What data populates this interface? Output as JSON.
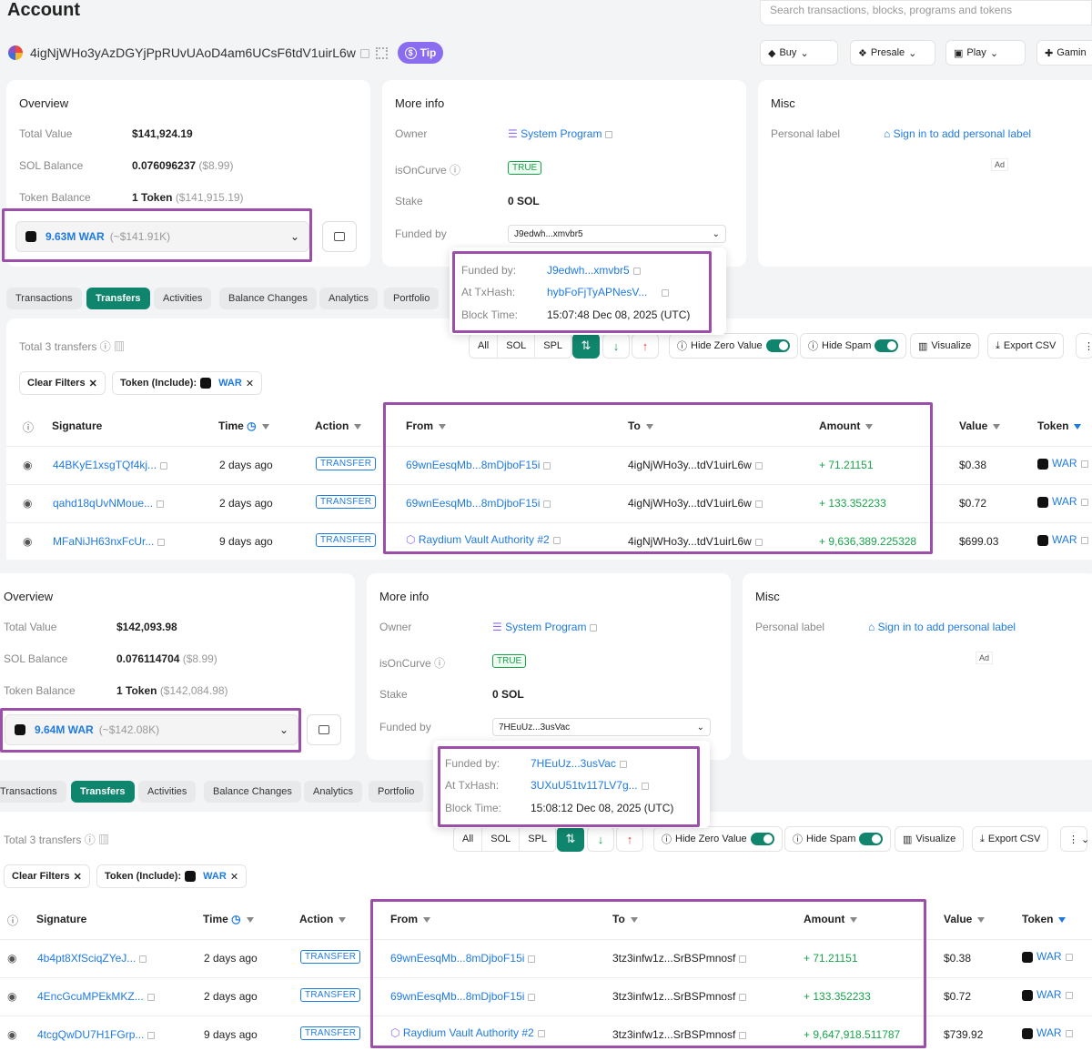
{
  "top": {
    "title": "Account",
    "address": "4igNjWHo3yAzDGYjPpRUvUAoD4am6UCsF6tdV1uirL6w",
    "tip_label": "Tip",
    "search_placeholder": "Search transactions, blocks, programs and tokens",
    "nav": [
      "Buy",
      "Presale",
      "Play",
      "Gamin"
    ]
  },
  "panels": [
    {
      "overview": {
        "heading": "Overview",
        "total_value_label": "Total Value",
        "total_value": "$141,924.19",
        "sol_label": "SOL Balance",
        "sol": "0.076096237",
        "sol_usd": "($8.99)",
        "token_label": "Token Balance",
        "token": "1 Token",
        "token_usd": "($141,915.19)",
        "select_amount": "9.63M WAR",
        "select_usd": "(~$141.91K)"
      },
      "more_info": {
        "heading": "More info",
        "owner_label": "Owner",
        "owner": "System Program",
        "curve_label": "isOnCurve",
        "curve": "TRUE",
        "stake_label": "Stake",
        "stake": "0 SOL",
        "funded_label": "Funded by",
        "funded": "J9edwh...xmvbr5"
      },
      "misc": {
        "heading": "Misc",
        "label": "Personal label",
        "link": "Sign in to add personal label",
        "ad": "Ad"
      },
      "popup": {
        "funded_label": "Funded by:",
        "funded": "J9edwh...xmvbr5",
        "tx_label": "At TxHash:",
        "tx": "hybFoFjTyAPNesV...",
        "time_label": "Block Time:",
        "time": "15:07:48 Dec 08, 2025 (UTC)"
      },
      "tabs": [
        "Transactions",
        "Transfers",
        "Activities",
        "Balance Changes",
        "Analytics",
        "Portfolio"
      ],
      "total_transfers": "Total 3 transfers",
      "segments": [
        "All",
        "SOL",
        "SPL"
      ],
      "buttons": {
        "hide_zero": "Hide Zero Value",
        "hide_spam": "Hide Spam",
        "visualize": "Visualize",
        "export": "Export CSV"
      },
      "filters": {
        "clear": "Clear Filters",
        "token_include": "Token (Include):",
        "token": "WAR"
      },
      "columns": [
        "Signature",
        "Time",
        "Action",
        "From",
        "To",
        "Amount",
        "Value",
        "Token"
      ],
      "rows": [
        {
          "sig": "44BKyE1xsgTQf4kj...",
          "time": "2 days ago",
          "action": "TRANSFER",
          "from": "69wnEesqMb...8mDjboF15i",
          "to": "4igNjWHo3y...tdV1uirL6w",
          "amount": "+ 71.21151",
          "value": "$0.38",
          "token": "WAR"
        },
        {
          "sig": "qahd18qUvNMoue...",
          "time": "2 days ago",
          "action": "TRANSFER",
          "from": "69wnEesqMb...8mDjboF15i",
          "to": "4igNjWHo3y...tdV1uirL6w",
          "amount": "+ 133.352233",
          "value": "$0.72",
          "token": "WAR"
        },
        {
          "sig": "MFaNiJH63nxFcUr...",
          "time": "9 days ago",
          "action": "TRANSFER",
          "from": "Raydium Vault Authority #2",
          "to": "4igNjWHo3y...tdV1uirL6w",
          "amount": "+ 9,636,389.225328",
          "value": "$699.03",
          "token": "WAR"
        }
      ]
    },
    {
      "overview": {
        "heading": "Overview",
        "total_value_label": "Total Value",
        "total_value": "$142,093.98",
        "sol_label": "SOL Balance",
        "sol": "0.076114704",
        "sol_usd": "($8.99)",
        "token_label": "Token Balance",
        "token": "1 Token",
        "token_usd": "($142,084.98)",
        "select_amount": "9.64M WAR",
        "select_usd": "(~$142.08K)"
      },
      "more_info": {
        "heading": "More info",
        "owner_label": "Owner",
        "owner": "System Program",
        "curve_label": "isOnCurve",
        "curve": "TRUE",
        "stake_label": "Stake",
        "stake": "0 SOL",
        "funded_label": "Funded by",
        "funded": "7HEuUz...3usVac"
      },
      "misc": {
        "heading": "Misc",
        "label": "Personal label",
        "link": "Sign in to add personal label",
        "ad": "Ad"
      },
      "popup": {
        "funded_label": "Funded by:",
        "funded": "7HEuUz...3usVac",
        "tx_label": "At TxHash:",
        "tx": "3UXuU51tv117LV7g...",
        "time_label": "Block Time:",
        "time": "15:08:12 Dec 08, 2025 (UTC)"
      },
      "tabs": [
        "Transactions",
        "Transfers",
        "Activities",
        "Balance Changes",
        "Analytics",
        "Portfolio"
      ],
      "total_transfers": "Total 3 transfers",
      "segments": [
        "All",
        "SOL",
        "SPL"
      ],
      "buttons": {
        "hide_zero": "Hide Zero Value",
        "hide_spam": "Hide Spam",
        "visualize": "Visualize",
        "export": "Export CSV"
      },
      "filters": {
        "clear": "Clear Filters",
        "token_include": "Token (Include):",
        "token": "WAR"
      },
      "columns": [
        "Signature",
        "Time",
        "Action",
        "From",
        "To",
        "Amount",
        "Value",
        "Token"
      ],
      "rows": [
        {
          "sig": "4b4pt8XfSciqZYeJ...",
          "time": "2 days ago",
          "action": "TRANSFER",
          "from": "69wnEesqMb...8mDjboF15i",
          "to": "3tz3infw1z...SrBSPmnosf",
          "amount": "+ 71.21151",
          "value": "$0.38",
          "token": "WAR"
        },
        {
          "sig": "4EncGcuMPEkMKZ...",
          "time": "2 days ago",
          "action": "TRANSFER",
          "from": "69wnEesqMb...8mDjboF15i",
          "to": "3tz3infw1z...SrBSPmnosf",
          "amount": "+ 133.352233",
          "value": "$0.72",
          "token": "WAR"
        },
        {
          "sig": "4tcgQwDU7H1FGrp...",
          "time": "9 days ago",
          "action": "TRANSFER",
          "from": "Raydium Vault Authority #2",
          "to": "3tz3infw1z...SrBSPmnosf",
          "amount": "+ 9,647,918.511787",
          "value": "$739.92",
          "token": "WAR"
        }
      ]
    }
  ]
}
